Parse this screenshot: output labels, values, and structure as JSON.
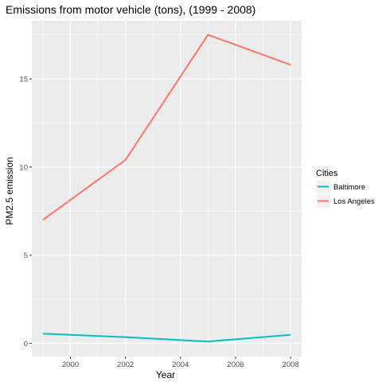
{
  "chart_data": {
    "type": "line",
    "title": "Emissions from motor vehicle (tons), (1999 - 2008)",
    "xlabel": "Year",
    "ylabel": "PM2.5 emission",
    "x": [
      1999,
      2002,
      2005,
      2008
    ],
    "x_ticks": [
      2000,
      2002,
      2004,
      2006,
      2008
    ],
    "y_ticks": [
      0,
      5,
      10,
      15
    ],
    "xlim": [
      1998.6,
      2008.4
    ],
    "ylim": [
      -0.75,
      18.3
    ],
    "grid": true,
    "legend": {
      "title": "Cities",
      "placement": "right"
    },
    "series": [
      {
        "name": "Baltimore",
        "values": [
          0.55,
          0.35,
          0.1,
          0.48
        ],
        "color": "#00BFC4"
      },
      {
        "name": "Los Angeles",
        "values": [
          7.0,
          10.4,
          17.5,
          15.8
        ],
        "color": "#F8766D"
      }
    ]
  },
  "colors": {
    "panel_background": "#EBEBEB",
    "grid_line": "#FFFFFF"
  }
}
